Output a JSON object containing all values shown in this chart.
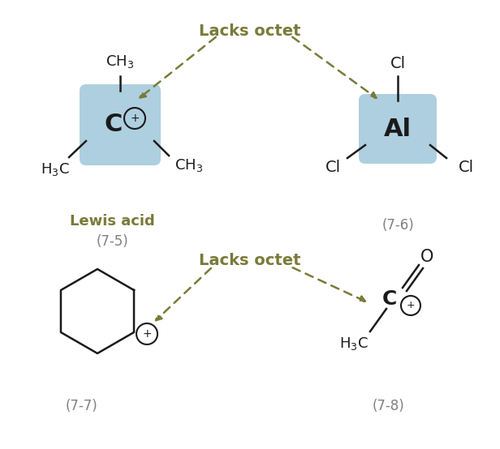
{
  "bg_color": "#ffffff",
  "arrow_color": "#7a7a3a",
  "box_color": "#aecfdf",
  "label_color_olive": "#7a7a3a",
  "label_color_gray": "#808080",
  "line_color": "#1a1a1a",
  "top_label": "Lacks octet",
  "bottom_label": "Lacks octet",
  "lewis_acid_label": "Lewis acid",
  "compound_75": "(7-5)",
  "compound_76": "(7-6)",
  "compound_77": "(7-7)",
  "compound_78": "(7-8)",
  "figsize": [
    6.16,
    5.54
  ],
  "dpi": 100
}
